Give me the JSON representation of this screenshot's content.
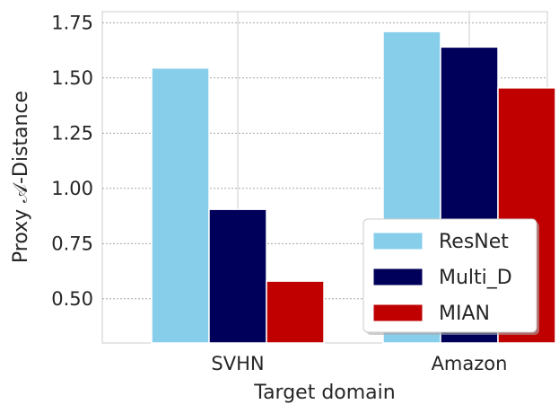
{
  "chart_data": {
    "type": "bar",
    "categories": [
      "SVHN",
      "Amazon"
    ],
    "series": [
      {
        "name": "ResNet",
        "values": [
          1.545,
          1.71
        ],
        "color": "#87ceeb"
      },
      {
        "name": "Multi_D",
        "values": [
          0.905,
          1.64
        ],
        "color": "#00005a"
      },
      {
        "name": "MIAN",
        "values": [
          0.58,
          1.455
        ],
        "color": "#c00000"
      }
    ],
    "xlabel": "Target domain",
    "ylabel": "Proxy 𝒜-Distance",
    "ylim": [
      0.3,
      1.8
    ],
    "yticks": [
      "0.50",
      "0.75",
      "1.00",
      "1.25",
      "1.50",
      "1.75"
    ],
    "ytick_values": [
      0.5,
      0.75,
      1.0,
      1.25,
      1.5,
      1.75
    ],
    "grid": true,
    "legend_position": "lower-right"
  }
}
